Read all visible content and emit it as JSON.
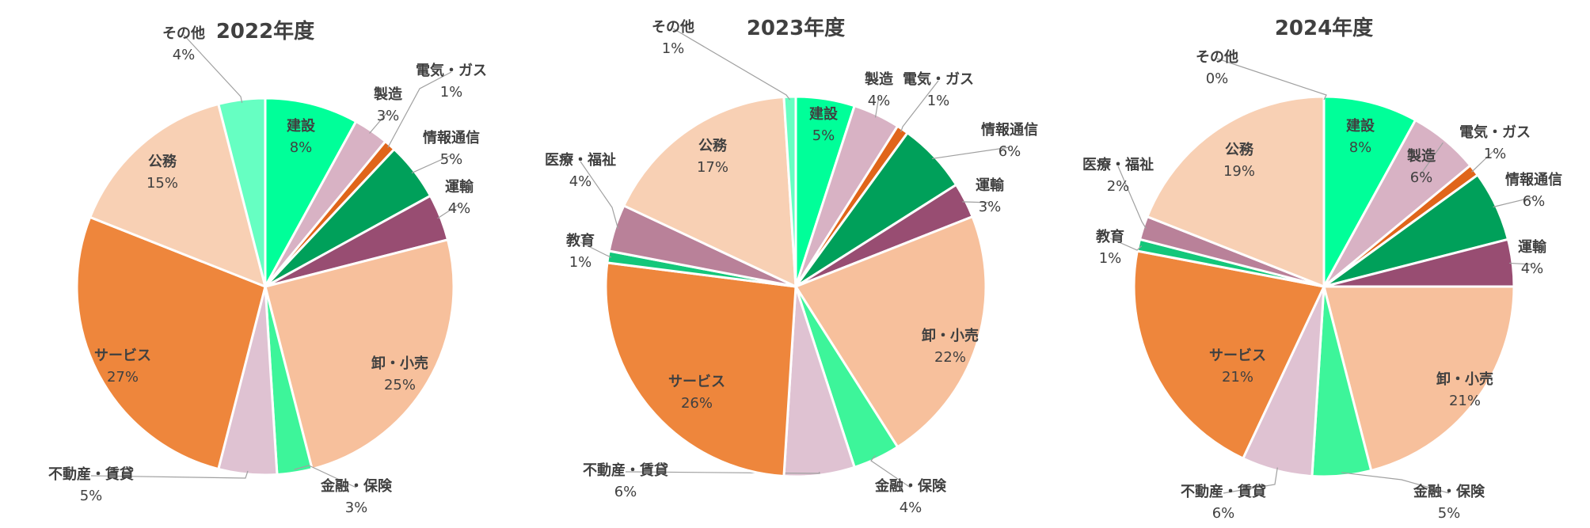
{
  "chart_data": [
    {
      "type": "pie",
      "title": "2022年度",
      "categories": [
        "建設",
        "製造",
        "電気・ガス",
        "情報通信",
        "運輸",
        "卸・小売",
        "金融・保険",
        "不動産・賃貸",
        "サービス",
        "公務",
        "その他"
      ],
      "values": [
        8,
        3,
        1,
        5,
        4,
        25,
        3,
        5,
        27,
        15,
        4
      ],
      "value_labels": [
        "8%",
        "3%",
        "1%",
        "5%",
        "4%",
        "25%",
        "3%",
        "5%",
        "27%",
        "15%",
        "4%"
      ],
      "colors": [
        "#00FF99",
        "#D8B2C4",
        "#E0651A",
        "#00A05A",
        "#984D72",
        "#F7C09C",
        "#3DF59A",
        "#DFC2D2",
        "#EE863C",
        "#F8D0B4",
        "#66FFC2"
      ]
    },
    {
      "type": "pie",
      "title": "2023年度",
      "categories": [
        "建設",
        "製造",
        "電気・ガス",
        "情報通信",
        "運輸",
        "卸・小売",
        "金融・保険",
        "不動産・賃貸",
        "サービス",
        "教育",
        "医療・福祉",
        "公務",
        "その他"
      ],
      "values": [
        5,
        4,
        1,
        6,
        3,
        22,
        4,
        6,
        26,
        1,
        4,
        17,
        1
      ],
      "value_labels": [
        "5%",
        "4%",
        "1%",
        "6%",
        "3%",
        "22%",
        "4%",
        "6%",
        "26%",
        "1%",
        "4%",
        "17%",
        "1%"
      ],
      "colors": [
        "#00FF99",
        "#D8B2C4",
        "#E0651A",
        "#00A05A",
        "#984D72",
        "#F7C09C",
        "#3DF59A",
        "#DFC2D2",
        "#EE863C",
        "#14C77A",
        "#B98199",
        "#F8D0B4",
        "#66FFC2"
      ]
    },
    {
      "type": "pie",
      "title": "2024年度",
      "categories": [
        "建設",
        "製造",
        "電気・ガス",
        "情報通信",
        "運輸",
        "卸・小売",
        "金融・保険",
        "不動産・賃貸",
        "サービス",
        "教育",
        "医療・福祉",
        "公務",
        "その他"
      ],
      "values": [
        8,
        6,
        1,
        6,
        4,
        21,
        5,
        6,
        21,
        1,
        2,
        19,
        0
      ],
      "value_labels": [
        "8%",
        "6%",
        "1%",
        "6%",
        "4%",
        "21%",
        "5%",
        "6%",
        "21%",
        "1%",
        "2%",
        "19%",
        "0%"
      ],
      "colors": [
        "#00FF99",
        "#D8B2C4",
        "#E0651A",
        "#00A05A",
        "#984D72",
        "#F7C09C",
        "#3DF59A",
        "#DFC2D2",
        "#EE863C",
        "#14C77A",
        "#B98199",
        "#F8D0B4",
        "#66FFC2"
      ]
    }
  ]
}
